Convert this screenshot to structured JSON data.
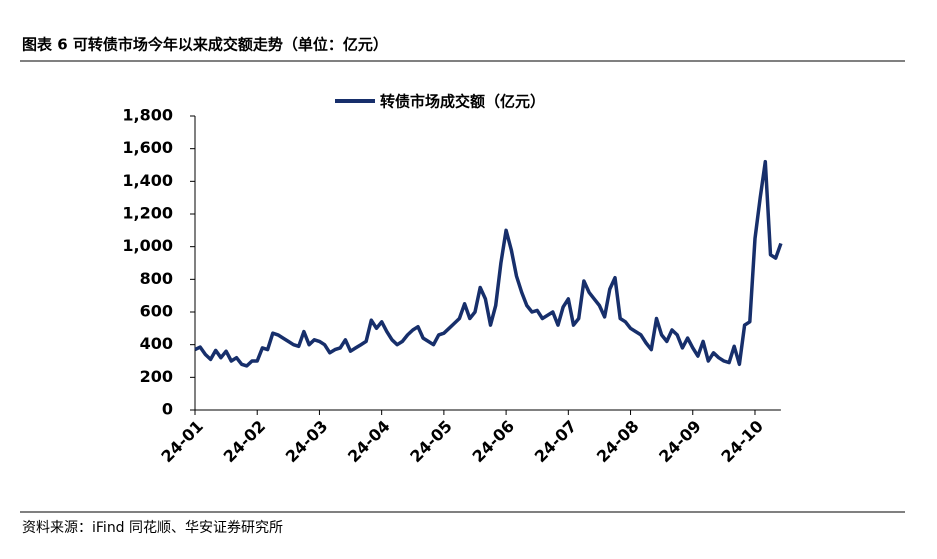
{
  "chart_data": {
    "type": "line",
    "title": "图表 6 可转债市场今年以来成交额走势（单位：亿元）",
    "source": "资料来源：iFind 同花顺、华安证券研究所",
    "categories": [
      "24-01",
      null,
      null,
      null,
      null,
      null,
      null,
      null,
      null,
      null,
      null,
      null,
      "24-02",
      null,
      null,
      null,
      null,
      null,
      null,
      null,
      null,
      null,
      null,
      null,
      "24-03",
      null,
      null,
      null,
      null,
      null,
      null,
      null,
      null,
      null,
      null,
      null,
      "24-04",
      null,
      null,
      null,
      null,
      null,
      null,
      null,
      null,
      null,
      null,
      null,
      "24-05",
      null,
      null,
      null,
      null,
      null,
      null,
      null,
      null,
      null,
      null,
      null,
      "24-06",
      null,
      null,
      null,
      null,
      null,
      null,
      null,
      null,
      null,
      null,
      null,
      "24-07",
      null,
      null,
      null,
      null,
      null,
      null,
      null,
      null,
      null,
      null,
      null,
      "24-08",
      null,
      null,
      null,
      null,
      null,
      null,
      null,
      null,
      null,
      null,
      null,
      "24-09",
      null,
      null,
      null,
      null,
      null,
      null,
      null,
      null,
      null,
      null,
      null,
      "24-10",
      null,
      null,
      null,
      null,
      null
    ],
    "series": [
      {
        "name": "转债市场成交额（亿元）",
        "color": "#172f6b",
        "values": [
          370,
          385,
          340,
          310,
          365,
          320,
          360,
          300,
          320,
          280,
          270,
          300,
          300,
          380,
          370,
          470,
          460,
          440,
          420,
          400,
          390,
          480,
          400,
          430,
          420,
          400,
          350,
          370,
          380,
          430,
          360,
          380,
          400,
          420,
          550,
          500,
          540,
          480,
          430,
          400,
          420,
          460,
          490,
          510,
          440,
          420,
          400,
          460,
          470,
          500,
          530,
          560,
          650,
          560,
          600,
          750,
          680,
          520,
          640,
          900,
          1100,
          980,
          820,
          720,
          640,
          600,
          610,
          560,
          580,
          600,
          520,
          630,
          680,
          520,
          560,
          790,
          720,
          680,
          640,
          570,
          740,
          810,
          560,
          540,
          500,
          480,
          460,
          410,
          370,
          560,
          460,
          420,
          490,
          460,
          380,
          440,
          380,
          330,
          420,
          300,
          350,
          320,
          300,
          290,
          390,
          280,
          520,
          540,
          1050,
          1300,
          1520,
          950,
          930,
          1020
        ]
      }
    ],
    "ylim": [
      0,
      1800
    ],
    "yticks": [
      0,
      200,
      400,
      600,
      800,
      {
        "value": 1000,
        "label": "1,000"
      },
      {
        "value": 1200,
        "label": "1,200"
      },
      {
        "value": 1400,
        "label": "1,400"
      },
      {
        "value": 1600,
        "label": "1,600"
      },
      {
        "value": 1800,
        "label": "1,800"
      }
    ]
  }
}
